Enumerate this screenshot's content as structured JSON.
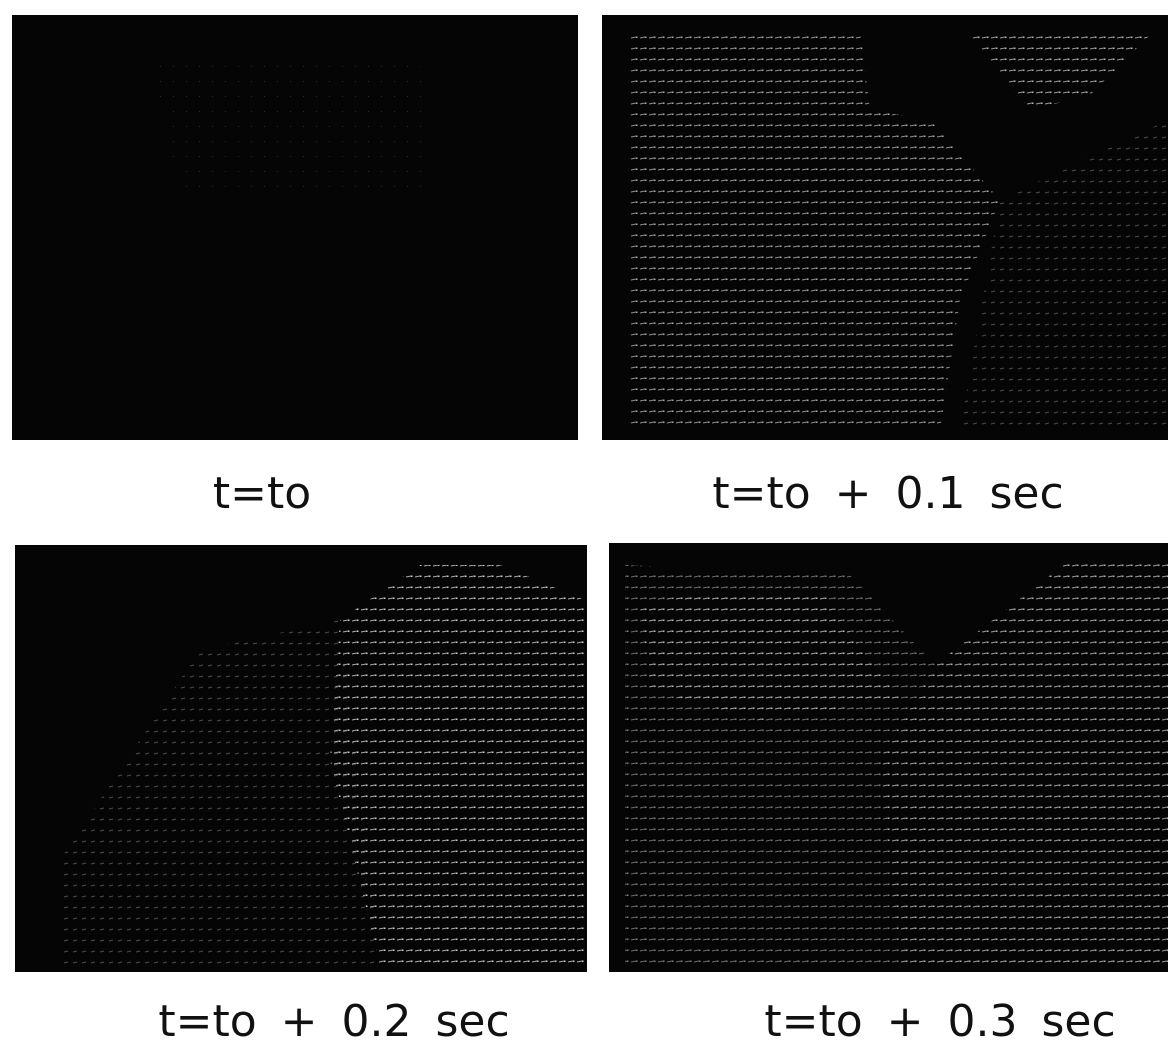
{
  "panels": [
    {
      "caption": "t=to"
    },
    {
      "caption": "t=to + 0.1 sec"
    },
    {
      "caption": "t=to + 0.2 sec"
    },
    {
      "caption": "t=to + 0.3 sec"
    }
  ]
}
